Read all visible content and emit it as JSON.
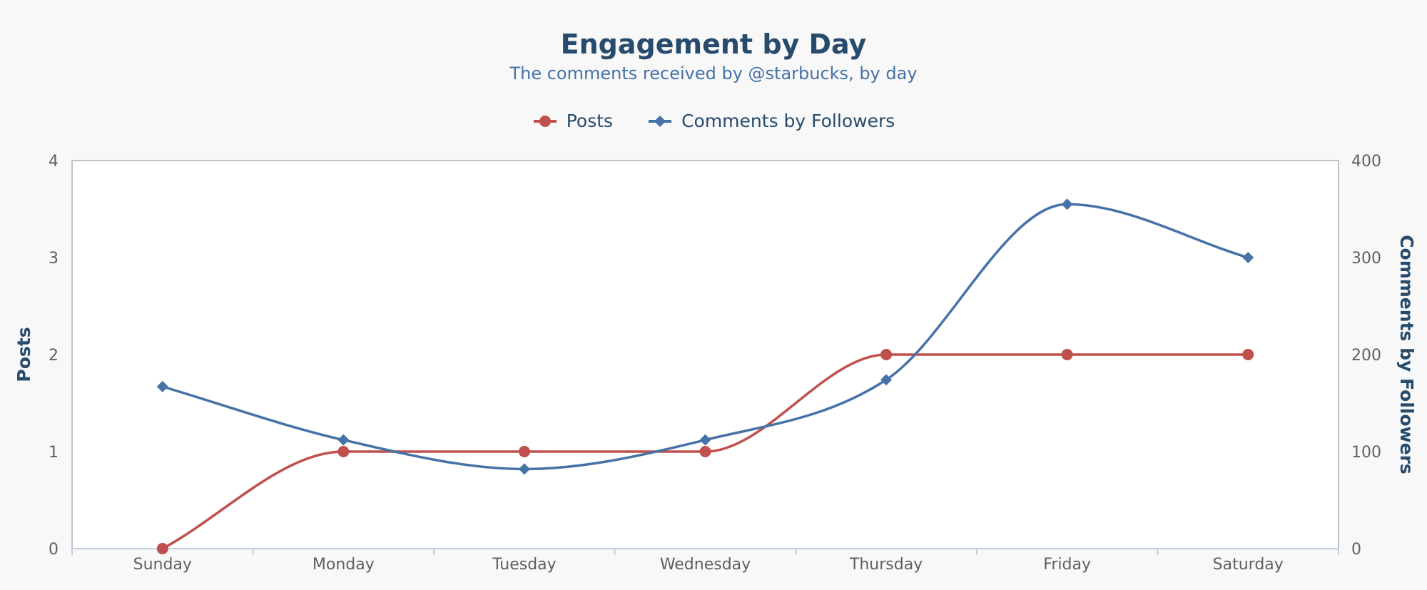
{
  "chart_data": {
    "type": "line",
    "title": "Engagement by Day",
    "subtitle": "The comments received by @starbucks, by day",
    "categories": [
      "Sunday",
      "Monday",
      "Tuesday",
      "Wednesday",
      "Thursday",
      "Friday",
      "Saturday"
    ],
    "series": [
      {
        "name": "Posts",
        "axis": "left",
        "color": "#c0504d",
        "marker": "circle",
        "values": [
          0,
          1,
          1,
          1,
          2,
          2,
          2
        ]
      },
      {
        "name": "Comments by Followers",
        "axis": "right",
        "color": "#4572a7",
        "marker": "diamond",
        "values": [
          167,
          112,
          82,
          112,
          174,
          355,
          300
        ]
      }
    ],
    "y_left": {
      "label": "Posts",
      "ylim": [
        0,
        4
      ],
      "ticks": [
        "0",
        "1",
        "2",
        "3",
        "4"
      ]
    },
    "y_right": {
      "label": "Comments by Followers",
      "ylim": [
        0,
        400
      ],
      "ticks": [
        "0",
        "100",
        "200",
        "300",
        "400"
      ]
    },
    "legend_position": "top-center",
    "grid": false
  }
}
